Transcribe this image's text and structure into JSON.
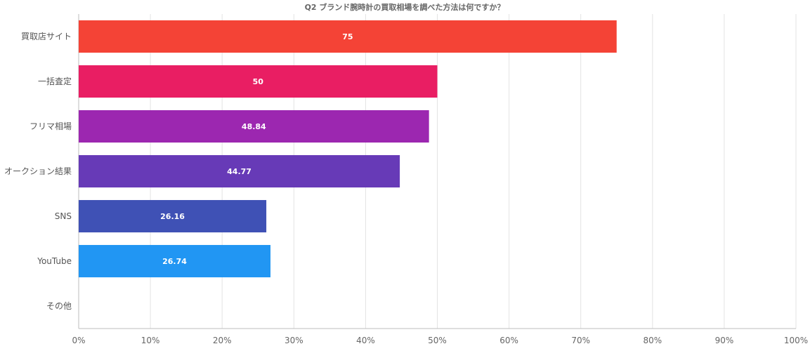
{
  "chart_data": {
    "type": "bar",
    "orientation": "horizontal",
    "title": "Q2 ブランド腕時計の買取相場を調べた方法は何ですか？",
    "categories": [
      "買取店サイト",
      "一括査定",
      "フリマ相場",
      "オークション結果",
      "SNS",
      "YouTube",
      "その他"
    ],
    "values": [
      75,
      50,
      48.84,
      44.77,
      26.16,
      26.74,
      0
    ],
    "data_labels": [
      "75",
      "50",
      "48.84",
      "44.77",
      "26.16",
      "26.74",
      ""
    ],
    "colors": [
      "#f44336",
      "#e91e63",
      "#9c27b0",
      "#673ab7",
      "#3f51b5",
      "#2196f3",
      "#03a9f4"
    ],
    "xlim": [
      0,
      100
    ],
    "x_ticks": [
      0,
      10,
      20,
      30,
      40,
      50,
      60,
      70,
      80,
      90,
      100
    ],
    "x_tick_labels": [
      "0%",
      "10%",
      "20%",
      "30%",
      "40%",
      "50%",
      "60%",
      "70%",
      "80%",
      "90%",
      "100%"
    ],
    "xlabel": "",
    "ylabel": "",
    "grid": true,
    "legend": "none"
  }
}
